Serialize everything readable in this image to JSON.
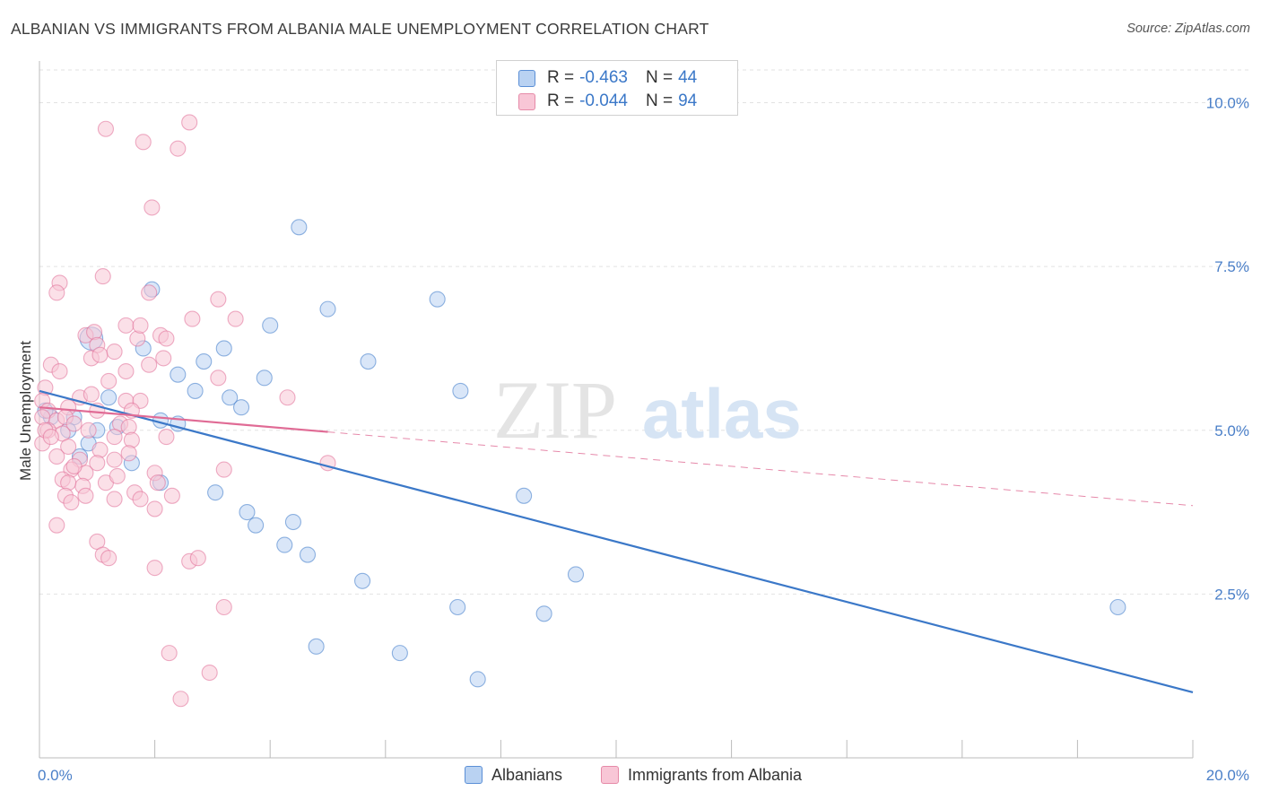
{
  "title": "ALBANIAN VS IMMIGRANTS FROM ALBANIA MALE UNEMPLOYMENT CORRELATION CHART",
  "source": "Source: ZipAtlas.com",
  "watermark": {
    "part1": "ZIP",
    "part2": "atlas"
  },
  "legend": {
    "r_label": "R =",
    "n_label": "N =",
    "rows": [
      {
        "r": "-0.463",
        "n": "44",
        "fill": "#b9d2f2",
        "stroke": "#5b8fd6"
      },
      {
        "r": "-0.044",
        "n": "94",
        "fill": "#f8c6d6",
        "stroke": "#e68aa8"
      }
    ]
  },
  "bottom_legend": {
    "items": [
      {
        "label": "Albanians",
        "fill": "#b9d2f2",
        "stroke": "#5b8fd6"
      },
      {
        "label": "Immigrants from Albania",
        "fill": "#f8c6d6",
        "stroke": "#e68aa8"
      }
    ]
  },
  "chart_data": {
    "type": "scatter",
    "ylabel": "Male Unemployment",
    "xlim": [
      0,
      20
    ],
    "ylim": [
      0,
      10.5
    ],
    "x_tick_labels": [
      {
        "value": 0,
        "label": "0.0%"
      },
      {
        "value": 20,
        "label": "20.0%"
      }
    ],
    "y_tick_labels": [
      {
        "value": 2.5,
        "label": "2.5%"
      },
      {
        "value": 5.0,
        "label": "5.0%"
      },
      {
        "value": 7.5,
        "label": "7.5%"
      },
      {
        "value": 10.0,
        "label": "10.0%"
      }
    ],
    "grid": true,
    "legend_placement": "top-center",
    "series": [
      {
        "name": "Albanians",
        "color": "#3b78c8",
        "fill": "#b9d2f2",
        "points": [
          [
            0.9,
            6.4,
            1.5
          ],
          [
            0.6,
            5.2,
            1
          ],
          [
            0.2,
            5.2,
            1
          ],
          [
            0.5,
            5.0,
            1
          ],
          [
            1.0,
            5.0,
            1
          ],
          [
            0.7,
            4.6,
            1
          ],
          [
            0.85,
            4.8,
            1
          ],
          [
            1.35,
            5.05,
            1
          ],
          [
            1.6,
            4.5,
            1
          ],
          [
            1.2,
            5.5,
            1
          ],
          [
            1.8,
            6.25,
            1
          ],
          [
            1.95,
            7.15,
            1
          ],
          [
            2.1,
            5.15,
            1
          ],
          [
            2.4,
            5.1,
            1
          ],
          [
            2.4,
            5.85,
            1
          ],
          [
            2.7,
            5.6,
            1
          ],
          [
            2.85,
            6.05,
            1
          ],
          [
            3.2,
            6.25,
            1
          ],
          [
            3.3,
            5.5,
            1
          ],
          [
            3.5,
            5.35,
            1
          ],
          [
            3.9,
            5.8,
            1
          ],
          [
            4.0,
            6.6,
            1
          ],
          [
            4.5,
            8.1,
            1
          ],
          [
            5.0,
            6.85,
            1
          ],
          [
            5.7,
            6.05,
            1
          ],
          [
            6.9,
            7.0,
            1
          ],
          [
            7.3,
            5.6,
            1
          ],
          [
            2.1,
            4.2,
            1
          ],
          [
            3.05,
            4.05,
            1
          ],
          [
            3.6,
            3.75,
            1
          ],
          [
            3.75,
            3.55,
            1
          ],
          [
            4.25,
            3.25,
            1
          ],
          [
            4.4,
            3.6,
            1
          ],
          [
            4.65,
            3.1,
            1
          ],
          [
            5.6,
            2.7,
            1
          ],
          [
            7.25,
            2.3,
            1
          ],
          [
            8.4,
            4.0,
            1
          ],
          [
            8.75,
            2.2,
            1
          ],
          [
            9.3,
            2.8,
            1
          ],
          [
            4.8,
            1.7,
            1
          ],
          [
            6.25,
            1.6,
            1
          ],
          [
            7.6,
            1.2,
            1
          ],
          [
            18.7,
            2.3,
            1
          ],
          [
            0.1,
            5.3,
            1
          ]
        ],
        "trend": {
          "x0": 0,
          "y0": 5.6,
          "x1": 20,
          "y1": 1.0,
          "solid_to": 20
        }
      },
      {
        "name": "Immigrants from Albania",
        "color": "#e06b95",
        "fill": "#f8c6d6",
        "points": [
          [
            1.15,
            9.6,
            1
          ],
          [
            1.8,
            9.4,
            1
          ],
          [
            2.4,
            9.3,
            1
          ],
          [
            2.6,
            9.7,
            1
          ],
          [
            1.95,
            8.4,
            1
          ],
          [
            1.1,
            7.35,
            1
          ],
          [
            0.35,
            7.25,
            1
          ],
          [
            0.3,
            7.1,
            1
          ],
          [
            1.9,
            7.1,
            1
          ],
          [
            3.1,
            7.0,
            1
          ],
          [
            0.8,
            6.45,
            1
          ],
          [
            0.95,
            6.5,
            1
          ],
          [
            1.5,
            6.6,
            1
          ],
          [
            1.7,
            6.4,
            1
          ],
          [
            1.75,
            6.6,
            1
          ],
          [
            2.1,
            6.45,
            1
          ],
          [
            2.2,
            6.4,
            1
          ],
          [
            2.65,
            6.7,
            1
          ],
          [
            3.4,
            6.7,
            1
          ],
          [
            1.0,
            6.3,
            1
          ],
          [
            0.9,
            6.1,
            1
          ],
          [
            1.05,
            6.15,
            1
          ],
          [
            1.3,
            6.2,
            1
          ],
          [
            0.2,
            6.0,
            1
          ],
          [
            0.35,
            5.9,
            1
          ],
          [
            1.5,
            5.9,
            1
          ],
          [
            1.9,
            6.0,
            1
          ],
          [
            2.15,
            6.1,
            1
          ],
          [
            0.1,
            5.65,
            1
          ],
          [
            1.2,
            5.75,
            1
          ],
          [
            3.1,
            5.8,
            1
          ],
          [
            0.05,
            5.45,
            1
          ],
          [
            0.7,
            5.5,
            1
          ],
          [
            0.9,
            5.55,
            1
          ],
          [
            1.5,
            5.45,
            1
          ],
          [
            1.75,
            5.45,
            1
          ],
          [
            4.3,
            5.5,
            1
          ],
          [
            0.15,
            5.3,
            1
          ],
          [
            0.5,
            5.35,
            1
          ],
          [
            1.0,
            5.3,
            1
          ],
          [
            1.6,
            5.3,
            1
          ],
          [
            0.05,
            5.2,
            1
          ],
          [
            0.3,
            5.15,
            1
          ],
          [
            0.45,
            5.2,
            1
          ],
          [
            0.6,
            5.1,
            1
          ],
          [
            1.4,
            5.1,
            1
          ],
          [
            1.55,
            5.05,
            1
          ],
          [
            0.15,
            5.0,
            1
          ],
          [
            0.4,
            4.95,
            1
          ],
          [
            0.85,
            5.0,
            1
          ],
          [
            1.3,
            4.9,
            1
          ],
          [
            1.6,
            4.85,
            1
          ],
          [
            2.2,
            4.9,
            1
          ],
          [
            0.05,
            4.8,
            1
          ],
          [
            0.5,
            4.75,
            1
          ],
          [
            1.05,
            4.7,
            1
          ],
          [
            1.3,
            4.55,
            1
          ],
          [
            1.55,
            4.65,
            1
          ],
          [
            0.3,
            4.6,
            1
          ],
          [
            0.7,
            4.55,
            1
          ],
          [
            1.0,
            4.5,
            1
          ],
          [
            0.55,
            4.4,
            1
          ],
          [
            0.8,
            4.35,
            1
          ],
          [
            2.0,
            4.35,
            1
          ],
          [
            0.4,
            4.25,
            1
          ],
          [
            1.15,
            4.2,
            1
          ],
          [
            2.05,
            4.2,
            1
          ],
          [
            0.75,
            4.15,
            1
          ],
          [
            0.5,
            4.2,
            1
          ],
          [
            1.35,
            4.3,
            1
          ],
          [
            3.2,
            4.4,
            1
          ],
          [
            5.0,
            4.5,
            1
          ],
          [
            0.45,
            4.0,
            1
          ],
          [
            0.8,
            4.0,
            1
          ],
          [
            1.3,
            3.95,
            1
          ],
          [
            1.65,
            4.05,
            1
          ],
          [
            2.3,
            4.0,
            1
          ],
          [
            1.75,
            3.95,
            1
          ],
          [
            0.55,
            3.9,
            1
          ],
          [
            2.0,
            3.8,
            1
          ],
          [
            0.3,
            3.55,
            1
          ],
          [
            1.0,
            3.3,
            1
          ],
          [
            1.1,
            3.1,
            1
          ],
          [
            1.2,
            3.05,
            1
          ],
          [
            2.6,
            3.0,
            1
          ],
          [
            2.75,
            3.05,
            1
          ],
          [
            2.0,
            2.9,
            1
          ],
          [
            3.2,
            2.3,
            1
          ],
          [
            2.25,
            1.6,
            1
          ],
          [
            2.95,
            1.3,
            1
          ],
          [
            2.45,
            0.9,
            1
          ],
          [
            0.1,
            5.0,
            1
          ],
          [
            0.2,
            4.9,
            1
          ],
          [
            0.6,
            4.45,
            1
          ]
        ],
        "trend": {
          "x0": 0,
          "y0": 5.35,
          "x1": 20,
          "y1": 3.85,
          "solid_to": 5.0
        }
      }
    ]
  }
}
